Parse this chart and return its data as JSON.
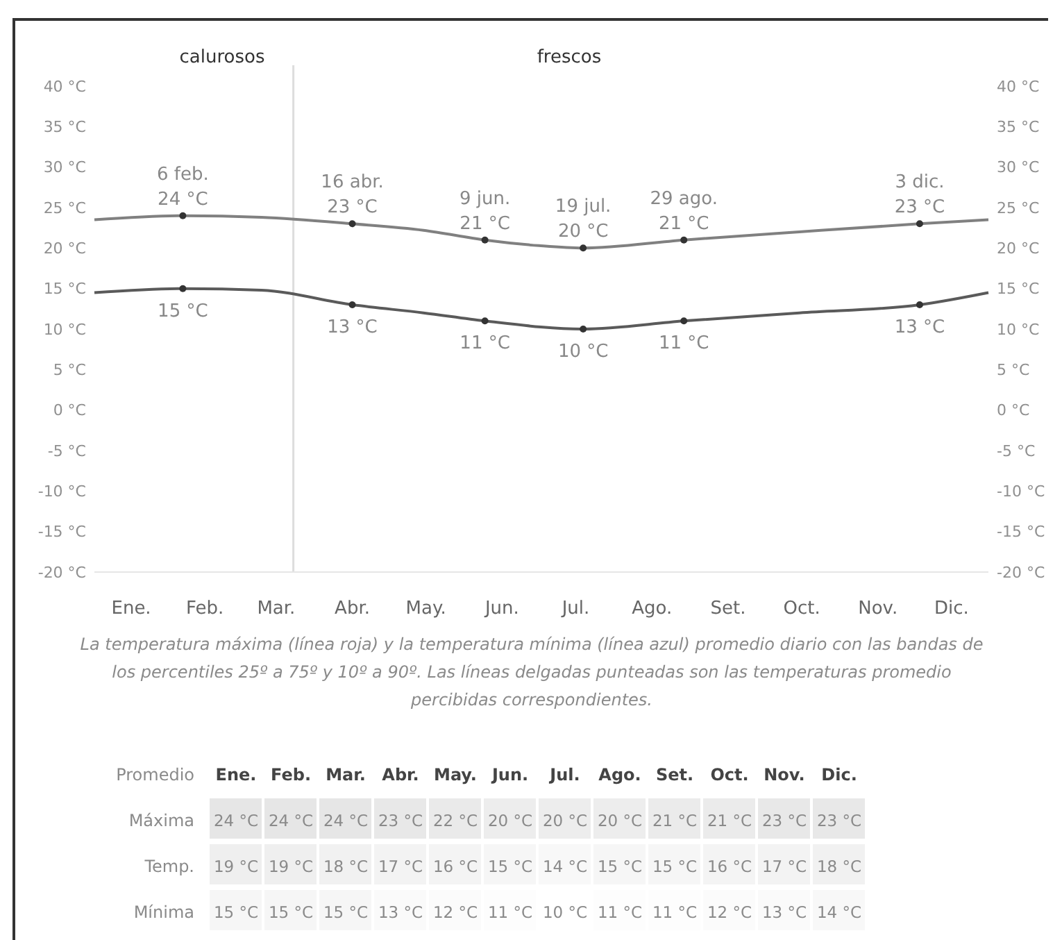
{
  "chart_data": [
    {
      "type": "line",
      "xlim": [
        "--01-01",
        "--12-31"
      ],
      "xticks": [
        {
          "value": "--01-16",
          "label": "Ene."
        },
        {
          "value": "--02-15",
          "label": "Feb."
        },
        {
          "value": "--03-16",
          "label": "Mar."
        },
        {
          "value": "--04-16",
          "label": "Abr."
        },
        {
          "value": "--05-16",
          "label": "May."
        },
        {
          "value": "--06-16",
          "label": "Jun."
        },
        {
          "value": "--07-16",
          "label": "Jul."
        },
        {
          "value": "--08-16",
          "label": "Ago."
        },
        {
          "value": "--09-16",
          "label": "Set."
        },
        {
          "value": "--10-16",
          "label": "Oct."
        },
        {
          "value": "--11-16",
          "label": "Nov."
        },
        {
          "value": "--12-16",
          "label": "Dic."
        }
      ],
      "ylim": [
        -20,
        40
      ],
      "yticks": [
        {
          "value": 40,
          "label": "40 °C"
        },
        {
          "value": 35,
          "label": "35 °C"
        },
        {
          "value": 30,
          "label": "30 °C"
        },
        {
          "value": 25,
          "label": "25 °C"
        },
        {
          "value": 20,
          "label": "20 °C"
        },
        {
          "value": 15,
          "label": "15 °C"
        },
        {
          "value": 10,
          "label": "10 °C"
        },
        {
          "value": 5,
          "label": "5 °C"
        },
        {
          "value": 0,
          "label": "0 °C"
        },
        {
          "value": -5,
          "label": "-5 °C"
        },
        {
          "value": -10,
          "label": "-10 °C"
        },
        {
          "value": -15,
          "label": "-15 °C"
        },
        {
          "value": -20,
          "label": "-20 °C"
        }
      ],
      "y2lim": [
        -20,
        40
      ],
      "y2ticks": [
        {
          "value": 40,
          "label": "40 °C"
        },
        {
          "value": 35,
          "label": "35 °C"
        },
        {
          "value": 30,
          "label": "30 °C"
        },
        {
          "value": 25,
          "label": "25 °C"
        },
        {
          "value": 20,
          "label": "20 °C"
        },
        {
          "value": 15,
          "label": "15 °C"
        },
        {
          "value": 10,
          "label": "10 °C"
        },
        {
          "value": 5,
          "label": "5 °C"
        },
        {
          "value": 0,
          "label": "0 °C"
        },
        {
          "value": -5,
          "label": "-5 °C"
        },
        {
          "value": -10,
          "label": "-10 °C"
        },
        {
          "value": -15,
          "label": "-15 °C"
        },
        {
          "value": -20,
          "label": "-20 °C"
        }
      ],
      "series": [
        {
          "color": "#808080",
          "x": [
            "--01-01",
            "--02-06",
            "--03-10",
            "--04-16",
            "--05-15",
            "--06-09",
            "--07-01",
            "--07-19",
            "--08-29",
            "--10-15",
            "--12-03",
            "--12-31"
          ],
          "values": [
            23.5,
            24,
            23.8,
            23,
            22.2,
            21,
            20.3,
            20,
            21,
            22,
            23,
            23.5
          ]
        },
        {
          "color": "#5a5a5a",
          "x": [
            "--01-01",
            "--02-06",
            "--03-10",
            "--04-16",
            "--05-15",
            "--06-09",
            "--07-19",
            "--08-29",
            "--10-15",
            "--12-03",
            "--12-31"
          ],
          "values": [
            14.5,
            15,
            14.8,
            13,
            12,
            11,
            10,
            11,
            12,
            13,
            14.5
          ]
        }
      ],
      "ref_lines": [
        {
          "axis": "x",
          "value": "--03-23",
          "color": "#dddddd"
        }
      ],
      "annotations": [
        "calurosos",
        "frescos",
        "La temperatura máxima (línea roja) y la temperatura mínima (línea azul) promedio diario con las bandas de los percentiles 25º a 75º y 10º a 90º. Las líneas delgadas punteadas son las temperaturas promedio percibidas correspondientes.",
        {
          "text": "6 feb.\n24 °C",
          "x": "--02-06",
          "y": 24
        },
        {
          "text": "16 abr.\n23 °C",
          "x": "--04-16",
          "y": 23
        },
        {
          "text": "9 jun.\n21 °C",
          "x": "--06-09",
          "y": 21
        },
        {
          "text": "19 jul.\n20 °C",
          "x": "--07-19",
          "y": 20
        },
        {
          "text": "29 ago.\n21 °C",
          "x": "--08-29",
          "y": 21
        },
        {
          "text": "3 dic.\n23 °C",
          "x": "--12-03",
          "y": 23
        },
        {
          "text": "15 °C",
          "x": "--02-06",
          "y": 15
        },
        {
          "text": "13 °C",
          "x": "--04-16",
          "y": 13
        },
        {
          "text": "11 °C",
          "x": "--06-09",
          "y": 11
        },
        {
          "text": "10 °C",
          "x": "--07-19",
          "y": 10
        },
        {
          "text": "11 °C",
          "x": "--08-29",
          "y": 11
        },
        {
          "text": "13 °C",
          "x": "--12-03",
          "y": 13
        }
      ],
      "grid": false
    },
    {
      "type": "heatmap",
      "title": "Promedio",
      "categories": [
        "Ene.",
        "Feb.",
        "Mar.",
        "Abr.",
        "May.",
        "Jun.",
        "Jul.",
        "Ago.",
        "Set.",
        "Oct.",
        "Nov.",
        "Dic."
      ],
      "y_categories": [
        "Máxima",
        "Temp.",
        "Mínima"
      ],
      "cells": [
        [
          24,
          24,
          24,
          23,
          22,
          20,
          20,
          20,
          21,
          21,
          23,
          23
        ],
        [
          19,
          19,
          18,
          17,
          16,
          15,
          14,
          15,
          15,
          16,
          17,
          18
        ],
        [
          15,
          15,
          15,
          13,
          12,
          11,
          10,
          11,
          11,
          12,
          13,
          14
        ]
      ],
      "cell_labels": [
        [
          "24 °C",
          "24 °C",
          "24 °C",
          "23 °C",
          "22 °C",
          "20 °C",
          "20 °C",
          "20 °C",
          "21 °C",
          "21 °C",
          "23 °C",
          "23 °C"
        ],
        [
          "19 °C",
          "19 °C",
          "18 °C",
          "17 °C",
          "16 °C",
          "15 °C",
          "14 °C",
          "15 °C",
          "15 °C",
          "16 °C",
          "17 °C",
          "18 °C"
        ],
        [
          "15 °C",
          "15 °C",
          "15 °C",
          "13 °C",
          "12 °C",
          "11 °C",
          "10 °C",
          "11 °C",
          "11 °C",
          "12 °C",
          "13 °C",
          "14 °C"
        ]
      ]
    }
  ]
}
